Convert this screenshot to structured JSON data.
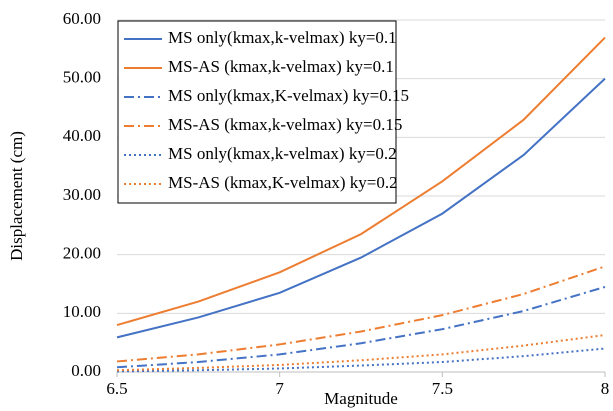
{
  "chart_data": {
    "type": "line",
    "x_label": "Magnitude",
    "y_label": "Displacement (cm)",
    "x": [
      6.5,
      6.75,
      7,
      7.25,
      7.5,
      7.75,
      8
    ],
    "xlim": [
      6.5,
      8
    ],
    "xticks": [
      6.5,
      7,
      7.5,
      8
    ],
    "ylim": [
      0,
      60
    ],
    "yticks": [
      {
        "value": 0,
        "label": "0.00"
      },
      {
        "value": 10,
        "label": "10.00"
      },
      {
        "value": 20,
        "label": "20.00"
      },
      {
        "value": 30,
        "label": "30.00"
      },
      {
        "value": 40,
        "label": "40.00"
      },
      {
        "value": 50,
        "label": "50.00"
      },
      {
        "value": 60,
        "label": "60.00"
      }
    ],
    "grid": true,
    "legend": "top-left",
    "series": [
      {
        "name": "MS only(kmax,k-velmax) ky=0.1",
        "color": "#4472c4",
        "style": "solid",
        "values": [
          5.9,
          9.3,
          13.5,
          19.5,
          27,
          37,
          50
        ]
      },
      {
        "name": "MS-AS (kmax,k-velmax) ky=0.1",
        "color": "#ed7d31",
        "style": "solid",
        "values": [
          8,
          12,
          17,
          23.5,
          32.5,
          43,
          57
        ]
      },
      {
        "name": "MS only(kmax,K-velmax) ky=0.15",
        "color": "#4472c4",
        "style": "dashdot",
        "values": [
          0.8,
          1.7,
          3,
          4.9,
          7.3,
          10.4,
          14.5
        ]
      },
      {
        "name": "MS-AS (kmax,k-velmax) ky=0.15",
        "color": "#ed7d31",
        "style": "dashdot",
        "values": [
          1.8,
          3,
          4.7,
          6.9,
          9.7,
          13.3,
          18
        ]
      },
      {
        "name": "MS only(kmax,k-velmax) ky=0.2",
        "color": "#4472c4",
        "style": "dotted",
        "values": [
          0.1,
          0.3,
          0.6,
          1.1,
          1.7,
          2.7,
          4
        ]
      },
      {
        "name": "MS-AS (kmax,K-velmax) ky=0.2",
        "color": "#ed7d31",
        "style": "dotted",
        "values": [
          0.3,
          0.7,
          1.2,
          2,
          3,
          4.5,
          6.3
        ]
      }
    ]
  }
}
